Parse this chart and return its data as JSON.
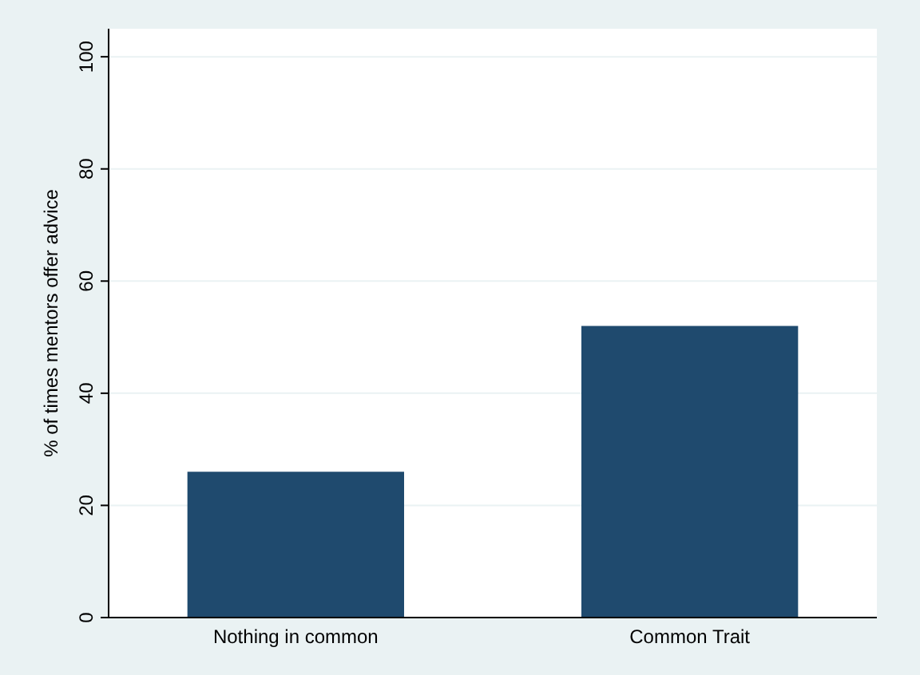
{
  "chart_data": {
    "type": "bar",
    "ylabel": "% of times mentors offer advice",
    "categories": [
      "Nothing in common",
      "Common Trait"
    ],
    "values": [
      26,
      52
    ],
    "color": "#1f4a6e",
    "ylim": [
      0,
      105
    ],
    "yticks": [
      0,
      20,
      40,
      60,
      80,
      100
    ],
    "grid": "y"
  }
}
